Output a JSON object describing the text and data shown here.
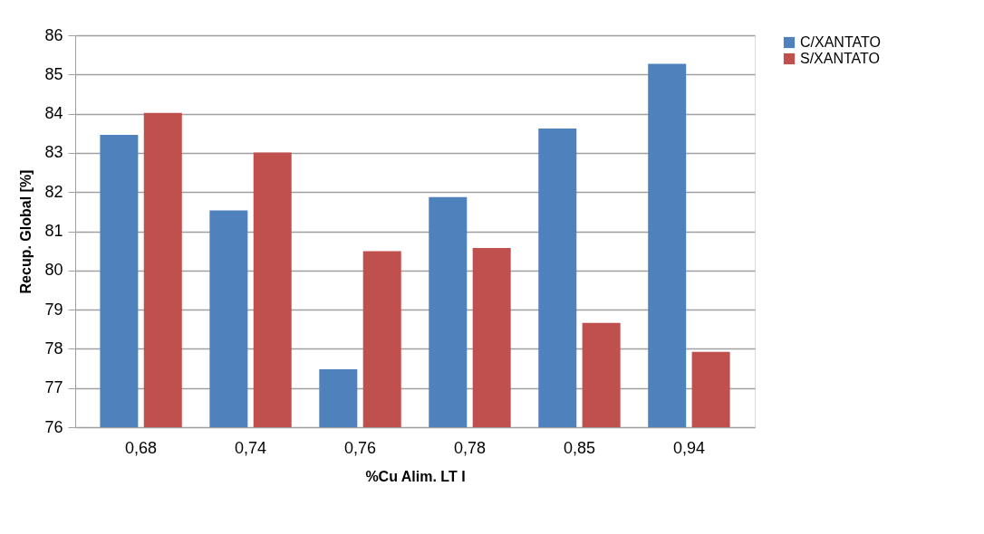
{
  "chart_data": {
    "type": "bar",
    "xlabel": "%Cu Alim. LT I",
    "ylabel": "Recup. Global [%]",
    "categories": [
      "0,68",
      "0,74",
      "0,76",
      "0,78",
      "0,85",
      "0,94"
    ],
    "series": [
      {
        "name": "C/XANTATO",
        "color": "#4f81bd",
        "values": [
          83.46,
          81.53,
          77.48,
          81.87,
          83.62,
          85.27
        ]
      },
      {
        "name": "S/XANTATO",
        "color": "#c0504d",
        "values": [
          84.02,
          83.01,
          80.49,
          80.57,
          78.66,
          77.92
        ]
      }
    ],
    "ylim": [
      76,
      86
    ],
    "yticks": [
      76,
      77,
      78,
      79,
      80,
      81,
      82,
      83,
      84,
      85,
      86
    ],
    "grid": "y",
    "legend": "right"
  }
}
